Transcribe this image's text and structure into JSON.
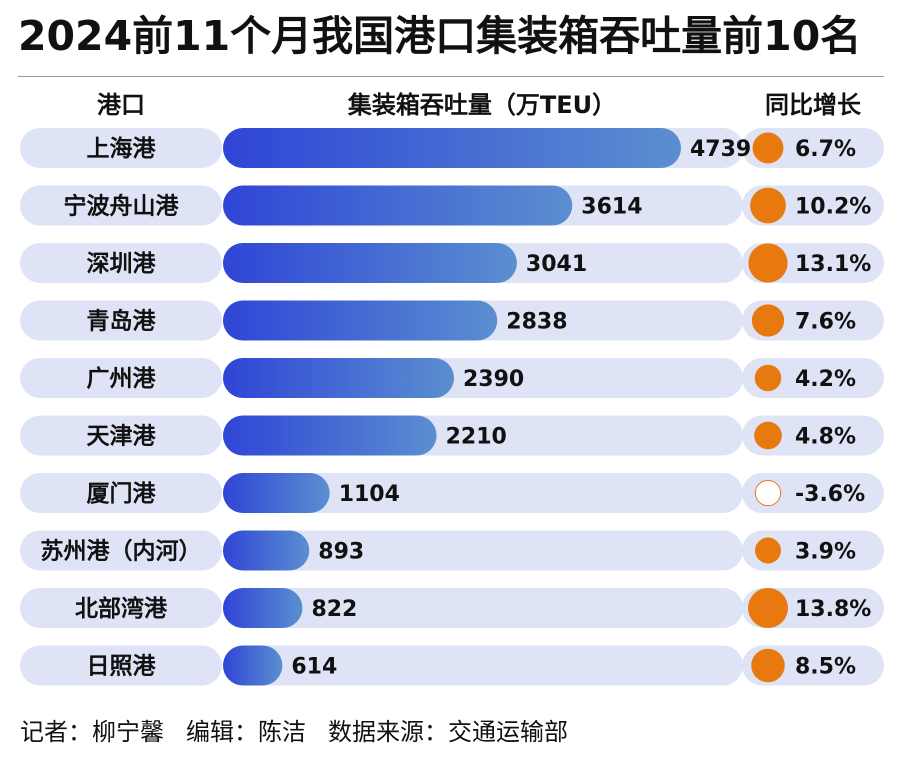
{
  "title": "2024前11个月我国港口集装箱吞吐量前10名",
  "headers": {
    "port": "港口",
    "value": "集装箱吞吐量（万TEU）",
    "yoy": "同比增长"
  },
  "colors": {
    "bar_start": "#2f45d6",
    "bar_end": "#5b8fd0",
    "row_bg": "#dfe3f6",
    "bubble": "#e8790f",
    "bubble_negative_fill": "#ffffff"
  },
  "chart_data": {
    "type": "bar",
    "orientation": "horizontal",
    "title": "2024前11个月我国港口集装箱吞吐量前10名",
    "xlabel": "集装箱吞吐量（万TEU）",
    "categories": [
      "上海港",
      "宁波舟山港",
      "深圳港",
      "青岛港",
      "广州港",
      "天津港",
      "厦门港",
      "苏州港（内河）",
      "北部湾港",
      "日照港"
    ],
    "series": [
      {
        "name": "集装箱吞吐量",
        "unit": "万TEU",
        "values": [
          4739,
          3614,
          3041,
          2838,
          2390,
          2210,
          1104,
          893,
          822,
          614
        ],
        "labels": [
          "4739",
          "3614",
          "3041",
          "2838",
          "2390",
          "2210",
          "1104",
          "893",
          "822",
          "614"
        ]
      },
      {
        "name": "同比增长",
        "unit": "%",
        "values": [
          6.7,
          10.2,
          13.1,
          7.6,
          4.2,
          4.8,
          -3.6,
          3.9,
          13.8,
          8.5
        ],
        "labels": [
          "6.7%",
          "10.2%",
          "13.1%",
          "7.6%",
          "4.2%",
          "4.8%",
          "-3.6%",
          "3.9%",
          "13.8%",
          "8.5%"
        ]
      }
    ],
    "xlim": [
      0,
      4739
    ]
  },
  "footer": {
    "reporter": "记者：柳宁馨",
    "editor": "编辑：陈洁",
    "source": "数据来源：交通运输部"
  }
}
